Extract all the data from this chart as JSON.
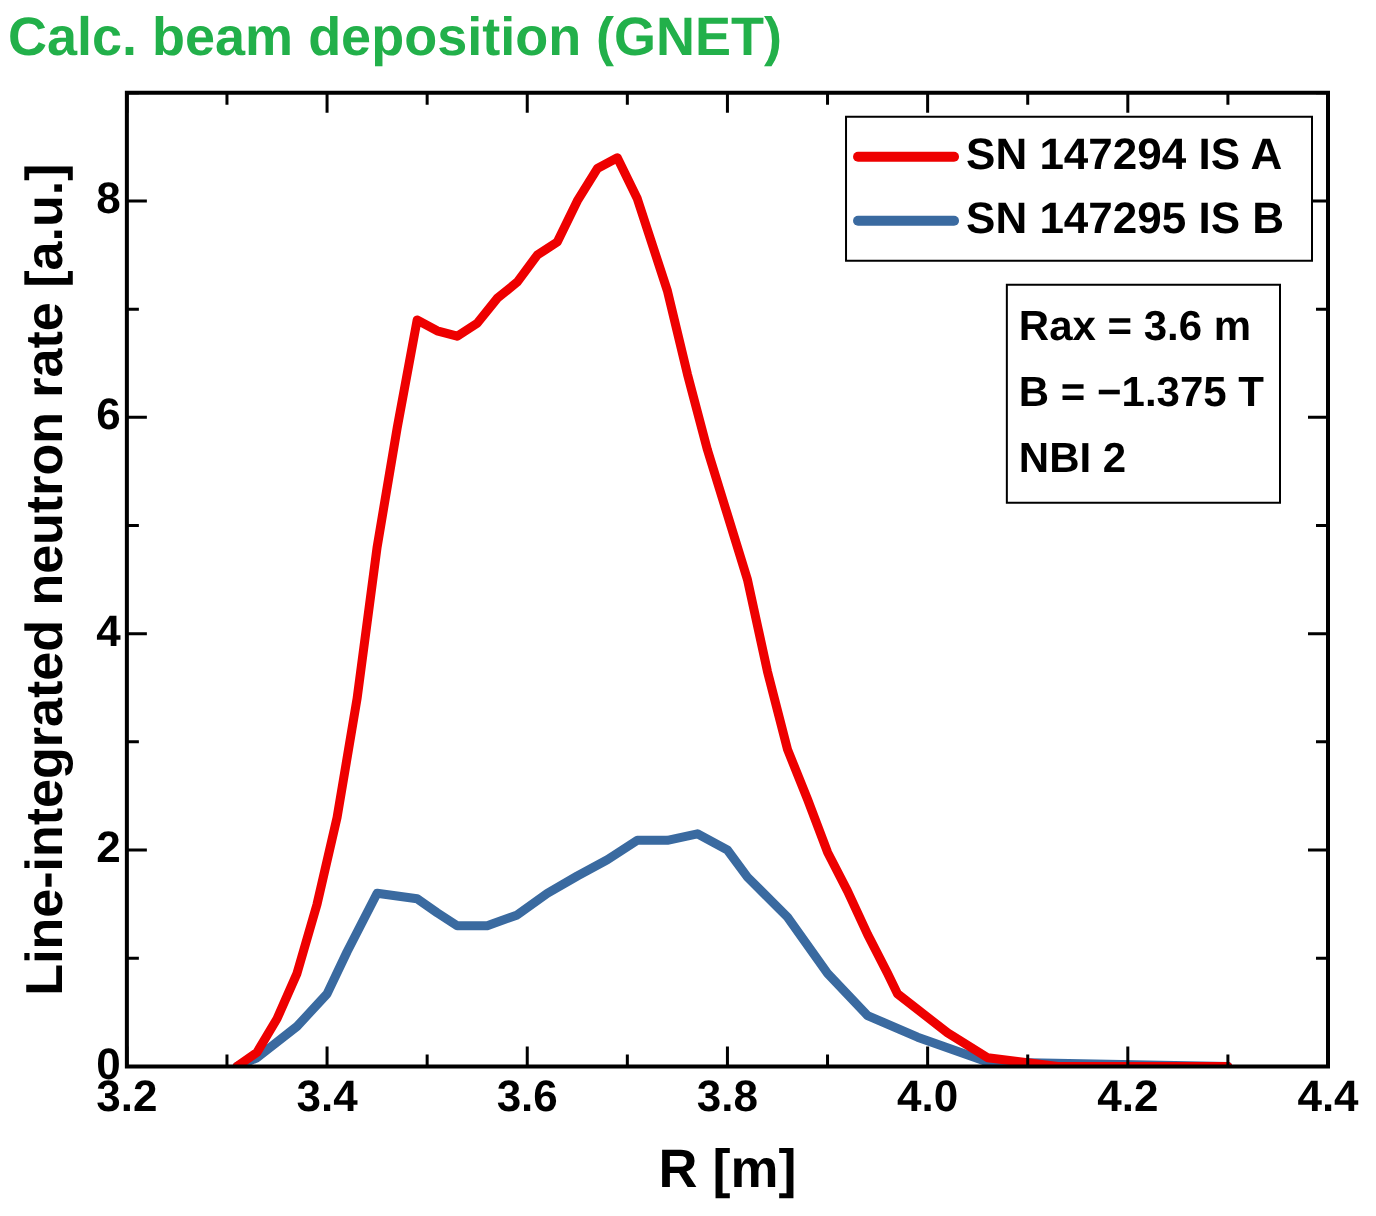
{
  "chart_data": {
    "type": "line",
    "title": "Calc. beam deposition (GNET)",
    "xlabel": "R [m]",
    "ylabel": "Line-integrated neutron rate [a.u.]",
    "xlim": [
      3.2,
      4.4
    ],
    "xticks": [
      3.2,
      {
        "value": 3.3,
        "label": null
      },
      3.4,
      {
        "value": 3.5,
        "label": null
      },
      3.6,
      {
        "value": 3.7,
        "label": null
      },
      3.8,
      {
        "value": 3.9,
        "label": null
      },
      {
        "value": 4.0,
        "label": "4.0"
      },
      {
        "value": 4.1,
        "label": null
      },
      4.2,
      {
        "value": 4.3,
        "label": null
      },
      4.4
    ],
    "ylim": [
      0,
      9
    ],
    "yticks": [
      0,
      {
        "value": 1,
        "label": null
      },
      2,
      {
        "value": 3,
        "label": null
      },
      4,
      {
        "value": 5,
        "label": null
      },
      6,
      {
        "value": 7,
        "label": null
      },
      8,
      {
        "value": 9,
        "label": null
      }
    ],
    "legend": "top right",
    "grid": false,
    "marker": "none",
    "line_style": "solid",
    "annotations": [
      "Rax = 3.6 m",
      "B = −1.375 T",
      "NBI 2"
    ],
    "series": [
      {
        "name": "SN 147294 IS A",
        "color": "#ee0000",
        "x": [
          3.31,
          3.33,
          3.35,
          3.37,
          3.39,
          3.41,
          3.43,
          3.45,
          3.47,
          3.49,
          3.51,
          3.53,
          3.55,
          3.57,
          3.59,
          3.61,
          3.63,
          3.65,
          3.67,
          3.69,
          3.71,
          3.74,
          3.76,
          3.78,
          3.8,
          3.82,
          3.84,
          3.86,
          3.88,
          3.9,
          3.92,
          3.94,
          3.96,
          3.97,
          4.02,
          4.06,
          4.13,
          4.3
        ],
        "values": [
          0,
          0.13,
          0.44,
          0.86,
          1.5,
          2.3,
          3.4,
          4.8,
          5.9,
          6.9,
          6.8,
          6.75,
          6.87,
          7.1,
          7.25,
          7.5,
          7.62,
          8.0,
          8.3,
          8.4,
          8.02,
          7.17,
          6.4,
          5.7,
          5.1,
          4.5,
          3.65,
          2.93,
          2.47,
          1.98,
          1.62,
          1.22,
          0.86,
          0.67,
          0.31,
          0.08,
          0,
          0
        ]
      },
      {
        "name": "SN 147295 IS B",
        "color": "#3a6aa0",
        "x": [
          3.31,
          3.33,
          3.37,
          3.4,
          3.42,
          3.45,
          3.49,
          3.51,
          3.53,
          3.56,
          3.59,
          3.62,
          3.65,
          3.68,
          3.71,
          3.74,
          3.77,
          3.8,
          3.82,
          3.86,
          3.9,
          3.94,
          3.99,
          4.06,
          4.3
        ],
        "values": [
          0,
          0.08,
          0.37,
          0.67,
          1.06,
          1.6,
          1.55,
          1.42,
          1.3,
          1.3,
          1.4,
          1.6,
          1.76,
          1.91,
          2.09,
          2.09,
          2.15,
          2.0,
          1.75,
          1.38,
          0.86,
          0.47,
          0.27,
          0.04,
          0
        ]
      }
    ]
  }
}
